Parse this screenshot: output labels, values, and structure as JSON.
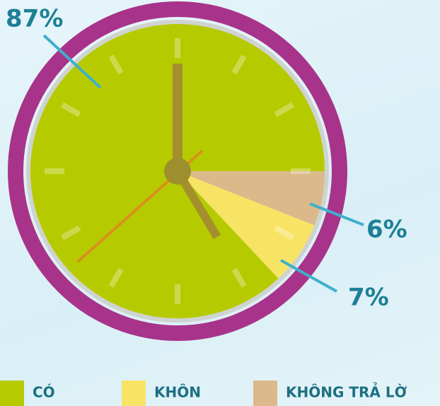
{
  "chart_data": {
    "type": "pie",
    "categories": [
      "CÓ",
      "KHÔN",
      "KHÔNG TRẢ LỜ"
    ],
    "values": [
      87,
      7,
      6
    ],
    "value_labels": [
      "87%",
      "7%",
      "6%"
    ],
    "colors": [
      "#b5cb00",
      "#f8e464",
      "#dbb98b"
    ]
  }
}
